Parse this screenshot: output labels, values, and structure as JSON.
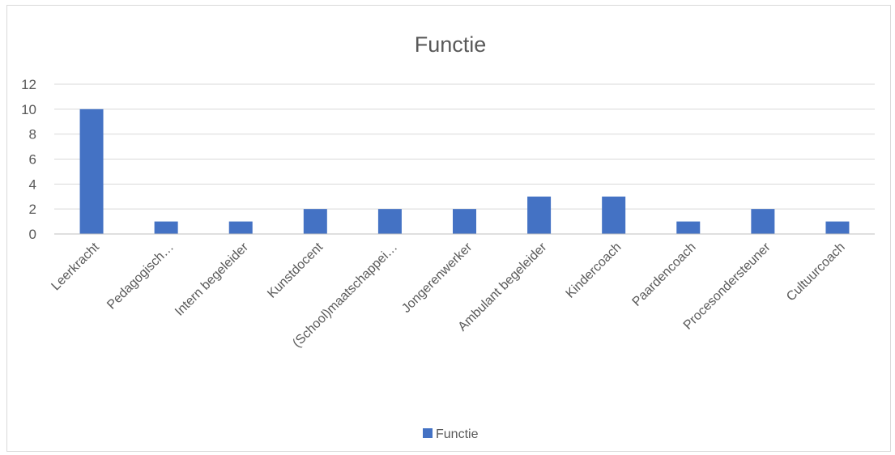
{
  "chart_data": {
    "type": "bar",
    "title": "Functie",
    "categories": [
      "Leerkracht",
      "Pedagogisch…",
      "Intern begeleider",
      "Kunstdocent",
      "(School)maatschappei…",
      "Jongerenwerker",
      "Ambulant begeleider",
      "Kindercoach",
      "Paardencoach",
      "Procesondersteuner",
      "Cultuurcoach"
    ],
    "series": [
      {
        "name": "Functie",
        "values": [
          10,
          1,
          1,
          2,
          2,
          2,
          3,
          3,
          1,
          2,
          1
        ]
      }
    ],
    "ylim": [
      0,
      12
    ],
    "yticks": [
      0,
      2,
      4,
      6,
      8,
      10,
      12
    ],
    "xlabel": "",
    "ylabel": "",
    "grid": true,
    "legend_position": "bottom",
    "colors": {
      "bar": "#4472c4",
      "grid": "#d9d9d9",
      "text": "#595959",
      "axis": "#bfbfbf"
    }
  }
}
